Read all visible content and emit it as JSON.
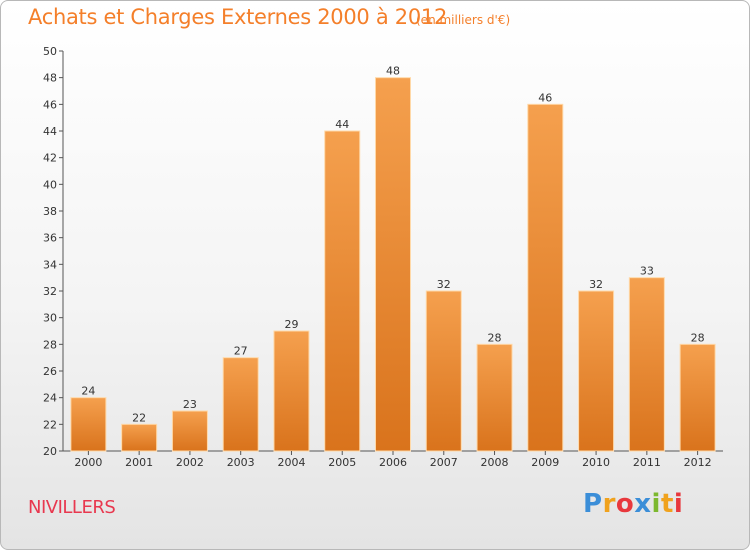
{
  "chart_data": {
    "type": "bar",
    "title": "Achats et Charges Externes 2000 à 2012",
    "subtitle": "(en milliers d'€)",
    "categories": [
      "2000",
      "2001",
      "2002",
      "2003",
      "2004",
      "2005",
      "2006",
      "2007",
      "2008",
      "2009",
      "2010",
      "2011",
      "2012"
    ],
    "values": [
      24,
      22,
      23,
      27,
      29,
      44,
      48,
      32,
      28,
      46,
      32,
      33,
      28
    ],
    "ylim": [
      20,
      50
    ],
    "ytick_step": 2,
    "xlabel": "",
    "ylabel": "",
    "grid": false,
    "legend": "none",
    "colors": {
      "bar_top": "#f5a04e",
      "bar_bottom": "#d9731c",
      "bar_edge": "#ffd9a8"
    }
  },
  "commune": "NIVILLERS",
  "logo": {
    "text": "Proxiti",
    "letters": [
      {
        "char": "P",
        "color": "#3b8ed8"
      },
      {
        "char": "r",
        "color": "#f0a21d"
      },
      {
        "char": "o",
        "color": "#e8383d"
      },
      {
        "char": "x",
        "color": "#3b8ed8"
      },
      {
        "char": "i",
        "color": "#7cb82f"
      },
      {
        "char": "t",
        "color": "#f0a21d"
      },
      {
        "char": "i",
        "color": "#e8383d"
      }
    ]
  }
}
